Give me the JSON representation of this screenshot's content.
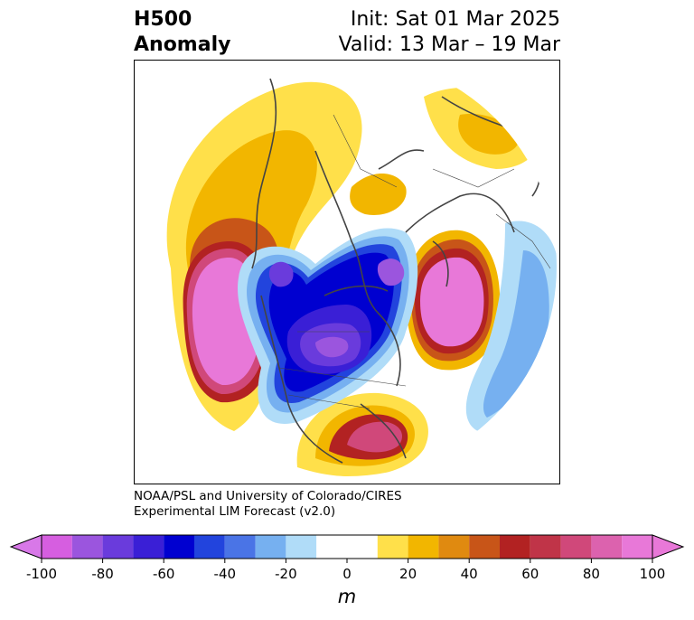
{
  "title": {
    "variable": "H500",
    "kind": "Anomaly",
    "init": "Init: Sat 01 Mar 2025",
    "valid": "Valid: 13 Mar – 19 Mar"
  },
  "credit": {
    "line1": "NOAA/PSL and University of Colorado/CIRES",
    "line2": "Experimental LIM Forecast (v2.0)"
  },
  "colorbar": {
    "unit": "m",
    "ticks": [
      "-100",
      "-80",
      "-60",
      "-40",
      "-20",
      "0",
      "20",
      "40",
      "60",
      "80",
      "100"
    ],
    "bins": [
      {
        "from": -100,
        "to": -90,
        "color": "#d65ee0"
      },
      {
        "from": -90,
        "to": -80,
        "color": "#9b55de"
      },
      {
        "from": -80,
        "to": -70,
        "color": "#6a3bdc"
      },
      {
        "from": -70,
        "to": -60,
        "color": "#3a1fd6"
      },
      {
        "from": -60,
        "to": -50,
        "color": "#0000d0"
      },
      {
        "from": -50,
        "to": -40,
        "color": "#2244dd"
      },
      {
        "from": -40,
        "to": -30,
        "color": "#4a74e6"
      },
      {
        "from": -30,
        "to": -20,
        "color": "#76b0f0"
      },
      {
        "from": -20,
        "to": -10,
        "color": "#b0dcf8"
      },
      {
        "from": -10,
        "to": 10,
        "color": "#ffffff"
      },
      {
        "from": 10,
        "to": 20,
        "color": "#ffe04a"
      },
      {
        "from": 20,
        "to": 30,
        "color": "#f2b600"
      },
      {
        "from": 30,
        "to": 40,
        "color": "#e08a10"
      },
      {
        "from": 40,
        "to": 50,
        "color": "#c85518"
      },
      {
        "from": 50,
        "to": 60,
        "color": "#b22222"
      },
      {
        "from": 60,
        "to": 70,
        "color": "#c03448"
      },
      {
        "from": 70,
        "to": 80,
        "color": "#d0487a"
      },
      {
        "from": 80,
        "to": 90,
        "color": "#dc62ae"
      },
      {
        "from": 90,
        "to": 100,
        "color": "#e878d8"
      }
    ],
    "under_color": "#d878e8",
    "over_color": "#e878d8"
  }
}
